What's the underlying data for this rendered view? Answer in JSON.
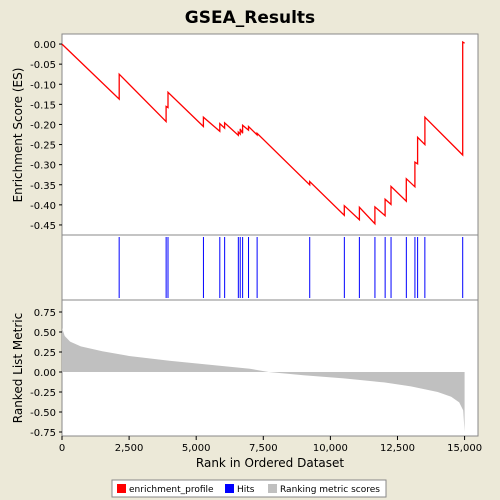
{
  "chart_data": {
    "type": "line",
    "title": "GSEA_Results",
    "xlabel": "Rank in Ordered Dataset",
    "x_range": [
      0,
      15500
    ],
    "x_ticks": [
      {
        "value": 0,
        "label": "0"
      },
      {
        "value": 2500,
        "label": "2,500"
      },
      {
        "value": 5000,
        "label": "5,000"
      },
      {
        "value": 7500,
        "label": "7,500"
      },
      {
        "value": 10000,
        "label": "10,000"
      },
      {
        "value": 12500,
        "label": "12,500"
      },
      {
        "value": 15000,
        "label": "15,000"
      }
    ],
    "es_panel": {
      "ylabel": "Enrichment Score (ES)",
      "ylim": [
        -0.475,
        0.025
      ],
      "y_ticks": [
        {
          "value": 0.0,
          "label": "0.00"
        },
        {
          "value": -0.05,
          "label": "-0.05"
        },
        {
          "value": -0.1,
          "label": "-0.10"
        },
        {
          "value": -0.15,
          "label": "-0.15"
        },
        {
          "value": -0.2,
          "label": "-0.20"
        },
        {
          "value": -0.25,
          "label": "-0.25"
        },
        {
          "value": -0.3,
          "label": "-0.30"
        },
        {
          "value": -0.35,
          "label": "-0.35"
        },
        {
          "value": -0.4,
          "label": "-0.40"
        },
        {
          "value": -0.45,
          "label": "-0.45"
        }
      ],
      "color": "#ff0000",
      "points": [
        [
          0,
          0.0
        ],
        [
          2130,
          -0.137
        ],
        [
          2130,
          -0.075
        ],
        [
          3880,
          -0.193
        ],
        [
          3880,
          -0.155
        ],
        [
          3950,
          -0.158
        ],
        [
          3950,
          -0.12
        ],
        [
          5270,
          -0.205
        ],
        [
          5270,
          -0.182
        ],
        [
          5880,
          -0.217
        ],
        [
          5880,
          -0.198
        ],
        [
          6060,
          -0.209
        ],
        [
          6060,
          -0.196
        ],
        [
          6570,
          -0.227
        ],
        [
          6570,
          -0.219
        ],
        [
          6640,
          -0.224
        ],
        [
          6640,
          -0.211
        ],
        [
          6730,
          -0.222
        ],
        [
          6730,
          -0.202
        ],
        [
          6950,
          -0.214
        ],
        [
          6950,
          -0.205
        ],
        [
          7270,
          -0.226
        ],
        [
          7270,
          -0.222
        ],
        [
          9230,
          -0.35
        ],
        [
          9230,
          -0.342
        ],
        [
          10520,
          -0.426
        ],
        [
          10520,
          -0.402
        ],
        [
          11080,
          -0.437
        ],
        [
          11080,
          -0.406
        ],
        [
          11660,
          -0.447
        ],
        [
          11660,
          -0.405
        ],
        [
          12040,
          -0.427
        ],
        [
          12040,
          -0.386
        ],
        [
          12260,
          -0.399
        ],
        [
          12260,
          -0.354
        ],
        [
          12830,
          -0.391
        ],
        [
          12830,
          -0.335
        ],
        [
          13150,
          -0.355
        ],
        [
          13150,
          -0.294
        ],
        [
          13250,
          -0.298
        ],
        [
          13250,
          -0.232
        ],
        [
          13520,
          -0.25
        ],
        [
          13520,
          -0.182
        ],
        [
          14930,
          -0.276
        ],
        [
          14930,
          0.005
        ],
        [
          15000,
          0.002
        ]
      ]
    },
    "hits_panel": {
      "color": "#0000ff",
      "hits": [
        2130,
        3880,
        3950,
        5270,
        5880,
        6060,
        6570,
        6640,
        6730,
        6950,
        7270,
        9230,
        10520,
        11080,
        11660,
        12040,
        12260,
        12830,
        13150,
        13250,
        13520,
        14930
      ]
    },
    "ranking_panel": {
      "ylabel": "Ranked List Metric",
      "ylim": [
        -0.8,
        0.9
      ],
      "y_ticks": [
        {
          "value": 0.75,
          "label": "0.75"
        },
        {
          "value": 0.5,
          "label": "0.50"
        },
        {
          "value": 0.25,
          "label": "0.25"
        },
        {
          "value": 0.0,
          "label": "0.00"
        },
        {
          "value": -0.25,
          "label": "-0.25"
        },
        {
          "value": -0.5,
          "label": "-0.50"
        },
        {
          "value": -0.75,
          "label": "-0.75"
        }
      ],
      "color": "#c0c0c0",
      "profile": [
        [
          0,
          0.55
        ],
        [
          100,
          0.45
        ],
        [
          300,
          0.38
        ],
        [
          700,
          0.32
        ],
        [
          1500,
          0.26
        ],
        [
          2500,
          0.2
        ],
        [
          4000,
          0.14
        ],
        [
          5500,
          0.09
        ],
        [
          7000,
          0.04
        ],
        [
          7700,
          0.0
        ],
        [
          9000,
          -0.04
        ],
        [
          10500,
          -0.08
        ],
        [
          12000,
          -0.13
        ],
        [
          13000,
          -0.18
        ],
        [
          14000,
          -0.25
        ],
        [
          14500,
          -0.31
        ],
        [
          14800,
          -0.38
        ],
        [
          14950,
          -0.48
        ],
        [
          15000,
          -0.75
        ]
      ]
    },
    "legend": {
      "placement": "bottom",
      "items": [
        {
          "label": "enrichment_profile",
          "color": "#ff0000"
        },
        {
          "label": "Hits",
          "color": "#0000ff"
        },
        {
          "label": "Ranking metric scores",
          "color": "#c0c0c0"
        }
      ]
    }
  }
}
